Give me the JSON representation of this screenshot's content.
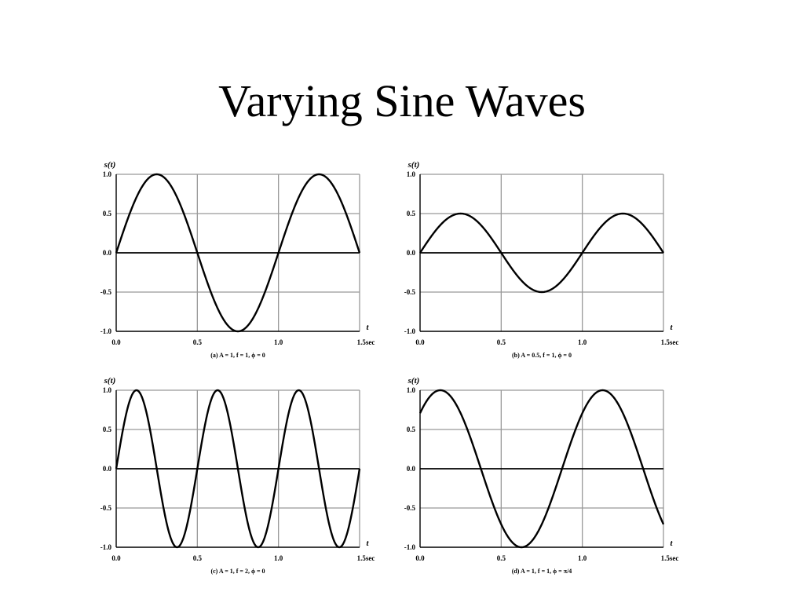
{
  "title": "Varying Sine Waves",
  "chart_data": [
    {
      "type": "line",
      "caption": "(a) A = 1, f = 1, ϕ = 0",
      "ylabel": "s(t)",
      "xlabel": "t",
      "amplitude": 1,
      "frequency": 1,
      "phase": 0,
      "xlim": [
        0,
        1.5
      ],
      "ylim": [
        -1,
        1
      ],
      "xticks": [
        "0.0",
        "0.5",
        "1.0",
        "1.5sec"
      ],
      "yticks": [
        "1.0",
        "0.5",
        "0.0",
        "-0.5",
        "-1.0"
      ],
      "grid": true
    },
    {
      "type": "line",
      "caption": "(b) A = 0.5, f = 1, ϕ = 0",
      "ylabel": "s(t)",
      "xlabel": "t",
      "amplitude": 0.5,
      "frequency": 1,
      "phase": 0,
      "xlim": [
        0,
        1.5
      ],
      "ylim": [
        -1,
        1
      ],
      "xticks": [
        "0.0",
        "0.5",
        "1.0",
        "1.5sec"
      ],
      "yticks": [
        "1.0",
        "0.5",
        "0.0",
        "-0.5",
        "-1.0"
      ],
      "grid": true
    },
    {
      "type": "line",
      "caption": "(c) A = 1, f = 2, ϕ = 0",
      "ylabel": "s(t)",
      "xlabel": "t",
      "amplitude": 1,
      "frequency": 2,
      "phase": 0,
      "xlim": [
        0,
        1.5
      ],
      "ylim": [
        -1,
        1
      ],
      "xticks": [
        "0.0",
        "0.5",
        "1.0",
        "1.5sec"
      ],
      "yticks": [
        "1.0",
        "0.5",
        "0.0",
        "-0.5",
        "-1.0"
      ],
      "grid": true
    },
    {
      "type": "line",
      "caption": "(d) A = 1, f = 1, ϕ = π/4",
      "ylabel": "s(t)",
      "xlabel": "t",
      "amplitude": 1,
      "frequency": 1,
      "phase": 0.785398,
      "xlim": [
        0,
        1.5
      ],
      "ylim": [
        -1,
        1
      ],
      "xticks": [
        "0.0",
        "0.5",
        "1.0",
        "1.5sec"
      ],
      "yticks": [
        "1.0",
        "0.5",
        "0.0",
        "-0.5",
        "-1.0"
      ],
      "grid": true
    }
  ]
}
